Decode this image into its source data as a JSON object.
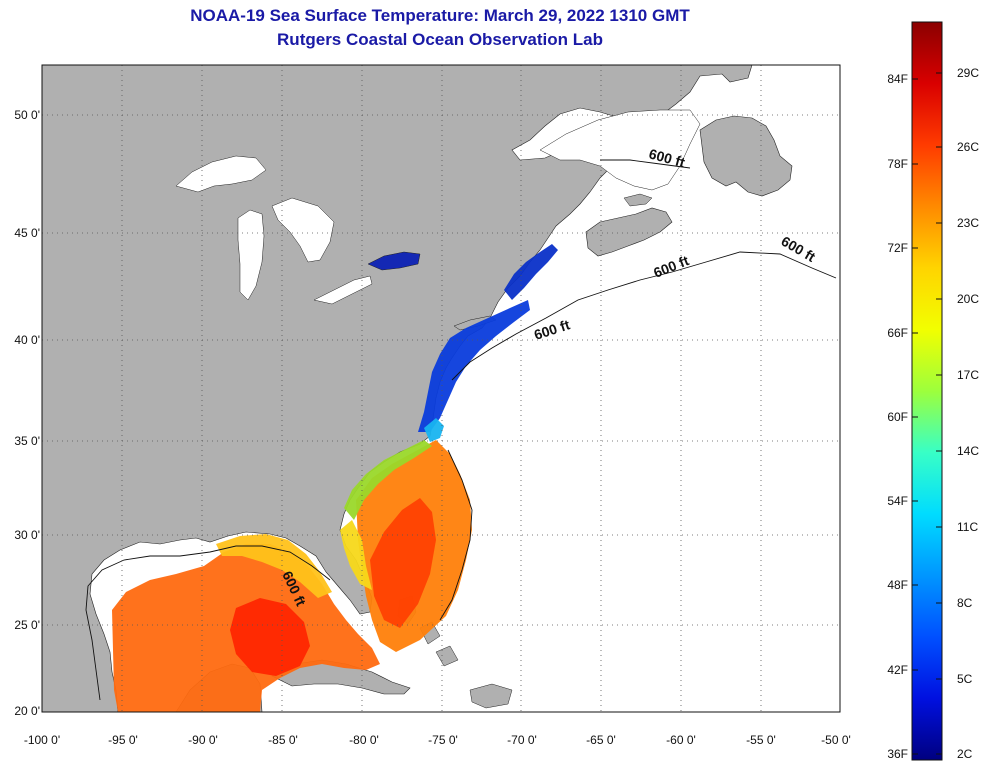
{
  "title_line1": "NOAA-19 Sea Surface Temperature:  March 29, 2022 1310 GMT",
  "title_line2": "Rutgers Coastal Ocean Observation Lab",
  "lat_ticks": [
    "50 0'",
    "45 0'",
    "40 0'",
    "35 0'",
    "30 0'",
    "25 0'",
    "20 0'"
  ],
  "lon_ticks": [
    "-100 0'",
    "-95 0'",
    "-90 0'",
    "-85 0'",
    "-80 0'",
    "-75 0'",
    "-70 0'",
    "-65 0'",
    "-60 0'",
    "-55 0'",
    "-50 0'"
  ],
  "isobath_label": "600 ft",
  "colorbar": {
    "fahrenheit": [
      "84F",
      "78F",
      "72F",
      "66F",
      "60F",
      "54F",
      "48F",
      "42F",
      "36F"
    ],
    "celsius": [
      "29C",
      "26C",
      "23C",
      "20C",
      "17C",
      "14C",
      "11C",
      "8C",
      "5C",
      "2C"
    ],
    "stops": [
      "#8b0000",
      "#d90000",
      "#ff3b00",
      "#ff8a00",
      "#ffd400",
      "#f2ff00",
      "#9dff3c",
      "#38ffc6",
      "#00dcff",
      "#0096ff",
      "#0050ff",
      "#0010e0",
      "#000080"
    ]
  },
  "colors": {
    "land": "#b0b0b0",
    "ocean": "#ffffff",
    "title": "#1a1aa6",
    "grid": "#555555"
  }
}
